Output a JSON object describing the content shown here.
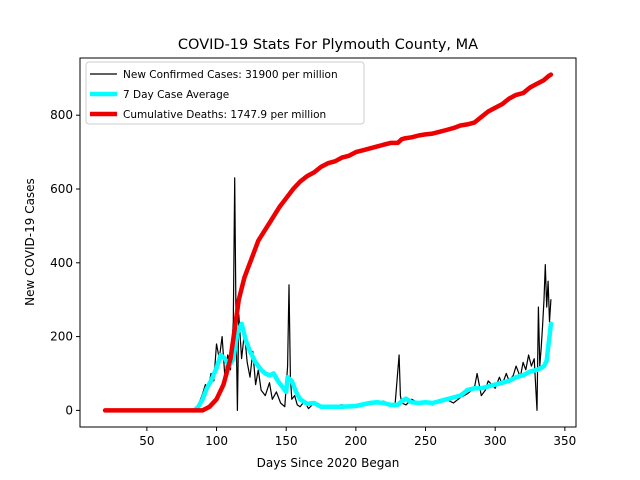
{
  "chart_data": {
    "type": "line",
    "title": "COVID-19 Stats For Plymouth County, MA",
    "xlabel": "Days Since 2020 Began",
    "ylabel": "New COVID-19 Cases",
    "xlim": [
      2,
      358
    ],
    "ylim": [
      -45,
      955
    ],
    "xticks": [
      50,
      100,
      150,
      200,
      250,
      300,
      350
    ],
    "yticks": [
      0,
      200,
      400,
      600,
      800
    ],
    "grid": false,
    "legend_position": "top-left",
    "series": [
      {
        "name": "New Confirmed Cases: 31900 per million",
        "color": "#000000",
        "style": "thin",
        "x": [
          20,
          84,
          86,
          88,
          90,
          92,
          94,
          96,
          98,
          100,
          102,
          104,
          106,
          108,
          110,
          112,
          113,
          114,
          115,
          116,
          118,
          120,
          122,
          124,
          126,
          128,
          130,
          132,
          135,
          138,
          140,
          143,
          146,
          149,
          151,
          152,
          153,
          154,
          156,
          158,
          160,
          163,
          166,
          170,
          175,
          180,
          190,
          200,
          210,
          220,
          228,
          231,
          232,
          233,
          236,
          240,
          245,
          250,
          255,
          260,
          265,
          270,
          275,
          280,
          285,
          287,
          290,
          293,
          295,
          300,
          303,
          305,
          308,
          310,
          313,
          315,
          318,
          320,
          322,
          324,
          326,
          328,
          330,
          331,
          332,
          333,
          334,
          335,
          336,
          337,
          338,
          339,
          340
        ],
        "values": [
          0,
          0,
          10,
          25,
          45,
          70,
          60,
          100,
          80,
          180,
          140,
          200,
          90,
          150,
          110,
          240,
          630,
          250,
          0,
          260,
          140,
          210,
          130,
          90,
          160,
          70,
          110,
          55,
          40,
          75,
          30,
          50,
          20,
          10,
          120,
          340,
          90,
          30,
          40,
          15,
          10,
          25,
          5,
          20,
          10,
          12,
          15,
          10,
          20,
          25,
          10,
          150,
          40,
          20,
          15,
          30,
          20,
          25,
          15,
          25,
          30,
          20,
          35,
          45,
          60,
          100,
          40,
          55,
          80,
          60,
          90,
          70,
          100,
          80,
          95,
          120,
          90,
          130,
          110,
          150,
          120,
          140,
          0,
          280,
          120,
          170,
          230,
          300,
          395,
          280,
          350,
          240,
          300
        ]
      },
      {
        "name": "7 Day Case Average",
        "color": "#00ffff",
        "style": "thick",
        "x": [
          84,
          87,
          90,
          93,
          96,
          100,
          103,
          106,
          109,
          112,
          115,
          118,
          121,
          124,
          128,
          132,
          135,
          138,
          141,
          144,
          147,
          150,
          151,
          154,
          157,
          160,
          165,
          170,
          175,
          180,
          190,
          200,
          210,
          215,
          220,
          225,
          230,
          233,
          236,
          240,
          245,
          250,
          255,
          260,
          265,
          270,
          275,
          280,
          285,
          290,
          295,
          300,
          305,
          310,
          315,
          320,
          325,
          330,
          333,
          335,
          337,
          338,
          339,
          340
        ],
        "values": [
          0,
          10,
          30,
          60,
          80,
          115,
          150,
          140,
          120,
          140,
          210,
          235,
          190,
          160,
          130,
          110,
          100,
          95,
          100,
          80,
          65,
          50,
          90,
          80,
          50,
          30,
          18,
          20,
          10,
          10,
          10,
          12,
          20,
          22,
          20,
          15,
          15,
          25,
          32,
          22,
          20,
          22,
          20,
          25,
          30,
          35,
          40,
          55,
          60,
          60,
          65,
          70,
          75,
          80,
          90,
          95,
          105,
          110,
          115,
          120,
          135,
          170,
          200,
          235
        ]
      },
      {
        "name": "Cumulative Deaths: 1747.9 per million",
        "color": "#ee0000",
        "style": "thick",
        "x": [
          20,
          90,
          95,
          100,
          105,
          110,
          113,
          116,
          120,
          125,
          130,
          135,
          140,
          145,
          150,
          155,
          160,
          165,
          170,
          175,
          180,
          185,
          190,
          195,
          200,
          205,
          210,
          215,
          220,
          225,
          230,
          233,
          235,
          240,
          245,
          250,
          255,
          260,
          265,
          270,
          275,
          280,
          285,
          290,
          295,
          300,
          305,
          310,
          315,
          320,
          325,
          330,
          335,
          338,
          340
        ],
        "values": [
          0,
          0,
          10,
          30,
          70,
          140,
          220,
          300,
          360,
          410,
          460,
          490,
          520,
          550,
          575,
          600,
          620,
          635,
          645,
          660,
          670,
          675,
          685,
          690,
          700,
          705,
          710,
          715,
          720,
          725,
          725,
          735,
          737,
          740,
          745,
          748,
          750,
          755,
          760,
          765,
          772,
          775,
          780,
          795,
          810,
          820,
          830,
          845,
          855,
          860,
          875,
          885,
          895,
          905,
          910
        ]
      }
    ]
  }
}
